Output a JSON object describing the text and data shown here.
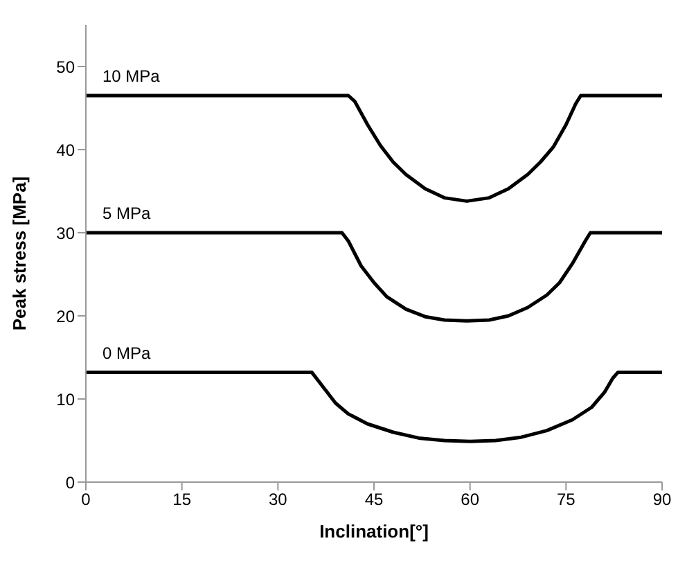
{
  "chart_data": {
    "type": "line",
    "xlabel": "Inclination[°]",
    "ylabel": "Peak stress [MPa]",
    "xlim": [
      0,
      90
    ],
    "xticks": [
      0,
      15,
      30,
      45,
      60,
      75,
      90
    ],
    "ylim": [
      0,
      55
    ],
    "yticks": [
      0,
      10,
      20,
      30,
      40,
      50
    ],
    "grid": false,
    "legend": false,
    "marker": "none",
    "line_style": "solid",
    "series": [
      {
        "name": "10 MPa",
        "color": "#000000",
        "x": [
          0,
          41,
          42,
          44,
          46,
          48,
          50,
          53,
          56,
          59.5,
          63,
          66,
          69,
          71,
          73,
          75,
          76.5,
          77.3,
          90
        ],
        "values": [
          46.5,
          46.5,
          45.8,
          43,
          40.5,
          38.5,
          37,
          35.3,
          34.2,
          33.8,
          34.2,
          35.3,
          37,
          38.5,
          40.3,
          43,
          45.5,
          46.5,
          46.5
        ]
      },
      {
        "name": "5 MPa",
        "color": "#000000",
        "x": [
          0,
          40,
          41,
          43,
          45,
          47,
          50,
          53,
          56,
          59.5,
          63,
          66,
          69,
          72,
          74,
          76,
          78,
          78.8,
          90
        ],
        "values": [
          30,
          30,
          29,
          26,
          24,
          22.3,
          20.8,
          19.9,
          19.5,
          19.4,
          19.5,
          20,
          21,
          22.5,
          24,
          26.3,
          29,
          30,
          30
        ]
      },
      {
        "name": "0 MPa",
        "color": "#000000",
        "x": [
          0,
          35.3,
          37,
          39,
          41,
          44,
          48,
          52,
          56,
          60,
          64,
          68,
          72,
          76,
          79,
          81,
          82.3,
          83.1,
          90
        ],
        "values": [
          13.2,
          13.2,
          11.5,
          9.5,
          8.2,
          7,
          6,
          5.3,
          5,
          4.9,
          5,
          5.4,
          6.2,
          7.5,
          9,
          10.8,
          12.5,
          13.2,
          13.2
        ]
      }
    ]
  }
}
